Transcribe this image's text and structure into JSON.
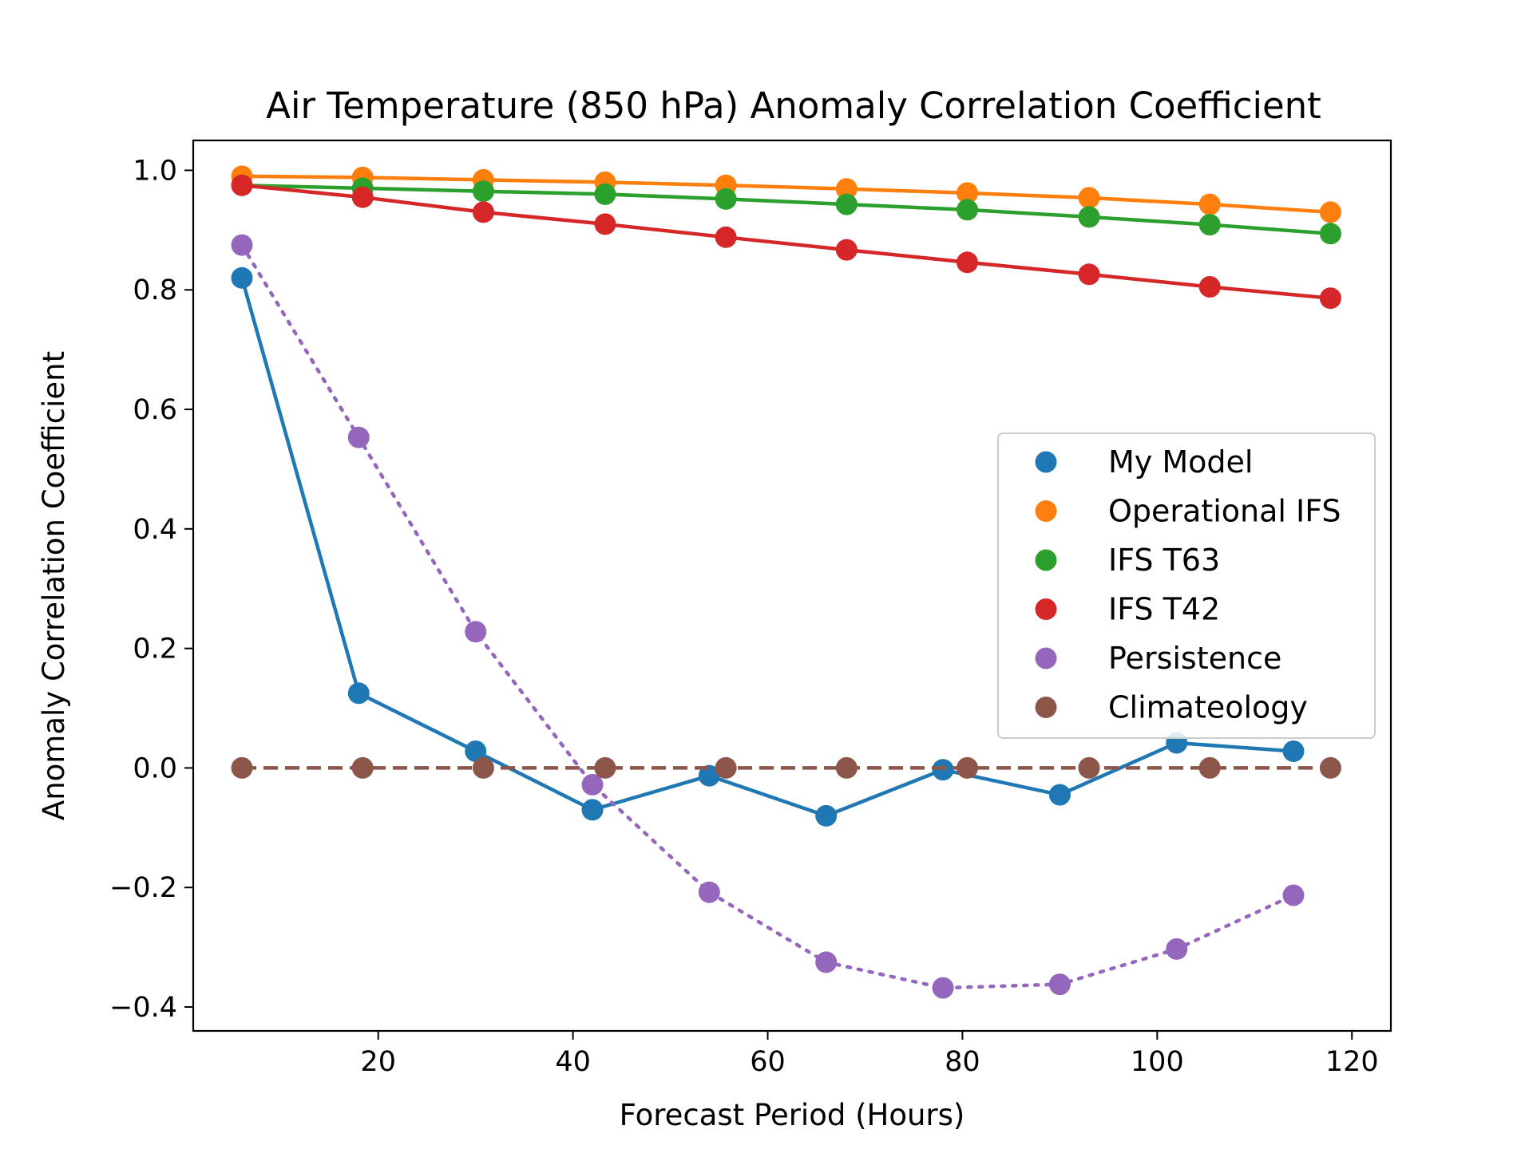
{
  "chart_data": {
    "type": "line",
    "title": "Air Temperature (850 hPa) Anomaly Correlation Coefficient",
    "xlabel": "Forecast Period (Hours)",
    "ylabel": "Anomaly Correlation Coefficient",
    "xlim": [
      1,
      124
    ],
    "ylim": [
      -0.44,
      1.05
    ],
    "xticks": [
      20,
      40,
      60,
      80,
      100,
      120
    ],
    "xtick_labels": [
      "20",
      "40",
      "60",
      "80",
      "100",
      "120"
    ],
    "yticks": [
      -0.4,
      -0.2,
      0.0,
      0.2,
      0.4,
      0.6,
      0.8,
      1.0
    ],
    "ytick_labels": [
      "−0.4",
      "−0.2",
      "0.0",
      "0.2",
      "0.4",
      "0.6",
      "0.8",
      "1.0"
    ],
    "grid": false,
    "legend_position": "center-right",
    "series": [
      {
        "name": "My Model",
        "color": "#1f77b4",
        "linestyle": "solid",
        "x": [
          6,
          18,
          30,
          42,
          54,
          66,
          78,
          90,
          102,
          114
        ],
        "y": [
          0.82,
          0.125,
          0.028,
          -0.07,
          -0.013,
          -0.08,
          -0.003,
          -0.045,
          0.042,
          0.028
        ]
      },
      {
        "name": "Operational IFS",
        "color": "#ff7f0e",
        "linestyle": "solid",
        "x": [
          6,
          18.4,
          30.8,
          43.3,
          55.7,
          68.1,
          80.5,
          93,
          105.4,
          117.8
        ],
        "y": [
          0.99,
          0.988,
          0.984,
          0.98,
          0.975,
          0.969,
          0.962,
          0.954,
          0.943,
          0.93
        ]
      },
      {
        "name": "IFS T63",
        "color": "#2ca02c",
        "linestyle": "solid",
        "x": [
          6,
          18.4,
          30.8,
          43.3,
          55.7,
          68.1,
          80.5,
          93,
          105.4,
          117.8
        ],
        "y": [
          0.975,
          0.97,
          0.965,
          0.96,
          0.952,
          0.943,
          0.934,
          0.922,
          0.909,
          0.894
        ]
      },
      {
        "name": "IFS T42",
        "color": "#d62728",
        "linestyle": "solid",
        "x": [
          6,
          18.4,
          30.8,
          43.3,
          55.7,
          68.1,
          80.5,
          93,
          105.4,
          117.8
        ],
        "y": [
          0.975,
          0.955,
          0.93,
          0.91,
          0.888,
          0.867,
          0.846,
          0.826,
          0.805,
          0.786
        ]
      },
      {
        "name": "Persistence",
        "color": "#9467bd",
        "linestyle": "dotted",
        "x": [
          6,
          18,
          30,
          42,
          54,
          66,
          78,
          90,
          102,
          114
        ],
        "y": [
          0.875,
          0.553,
          0.228,
          -0.028,
          -0.208,
          -0.325,
          -0.368,
          -0.362,
          -0.303,
          -0.213
        ]
      },
      {
        "name": "Climateology",
        "color": "#8c564b",
        "linestyle": "dashed",
        "x": [
          6,
          18.4,
          30.8,
          43.3,
          55.7,
          68.1,
          80.5,
          93,
          105.4,
          117.8
        ],
        "y": [
          0.0,
          0.0,
          0.0,
          0.0,
          0.0,
          0.0,
          0.0,
          0.0,
          0.0,
          0.0
        ]
      }
    ]
  }
}
